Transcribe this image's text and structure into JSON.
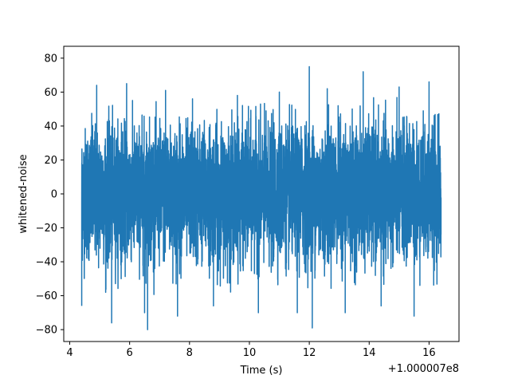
{
  "chart_data": {
    "type": "line",
    "title": "",
    "xlabel": "Time (s)",
    "ylabel": "whitened-noise",
    "x_offset_label": "+1.000007e8",
    "xlim": [
      3.8,
      17.0
    ],
    "ylim": [
      -87,
      87
    ],
    "x_ticks": [
      4,
      6,
      8,
      10,
      12,
      14,
      16
    ],
    "x_tick_labels": [
      "4",
      "6",
      "8",
      "10",
      "12",
      "14",
      "16"
    ],
    "y_ticks": [
      -80,
      -60,
      -40,
      -20,
      0,
      20,
      40,
      60,
      80
    ],
    "y_tick_labels": [
      "−80",
      "−60",
      "−40",
      "−20",
      "0",
      "20",
      "40",
      "60",
      "80"
    ],
    "grid": false,
    "series": [
      {
        "color": "#1f77b4",
        "x_range": [
          4.4,
          16.4
        ],
        "x": [
          4.4,
          4.9,
          5.2,
          5.4,
          5.9,
          6.5,
          6.6,
          7.2,
          7.6,
          8.1,
          8.8,
          9.6,
          10.3,
          11.0,
          11.6,
          12.0,
          12.1,
          12.6,
          13.2,
          13.8,
          14.4,
          15.0,
          15.5,
          16.0,
          16.4
        ],
        "y": [
          -66,
          64,
          -58,
          -76,
          65,
          -70,
          -80,
          61,
          -72,
          56,
          -66,
          58,
          -70,
          60,
          -70,
          75,
          -79,
          62,
          -70,
          72,
          -66,
          63,
          -72,
          66,
          -24
        ]
      }
    ]
  }
}
